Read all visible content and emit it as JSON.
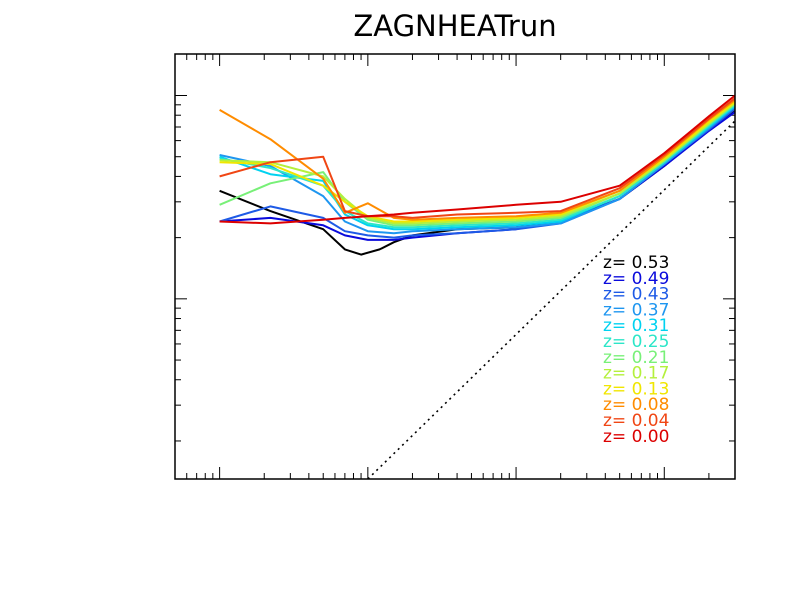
{
  "chart_data": {
    "type": "line",
    "title": "ZAGNHEATrun",
    "x_scale": "log",
    "y_scale": "log",
    "xlim": [
      0.5,
      3000
    ],
    "ylim": [
      0.0013,
      0.16
    ],
    "x_tick_labels_shown": false,
    "y_tick_labels_shown": false,
    "grid": false,
    "legend_placement": "right-center",
    "reference_line": {
      "style": "dotted",
      "color": "#000000",
      "points": [
        [
          10,
          0.0013
        ],
        [
          3000,
          0.075
        ]
      ]
    },
    "series": [
      {
        "name": "z=  0.53",
        "color": "#000000",
        "x": [
          1,
          2.2,
          5,
          7,
          9,
          12,
          15,
          20,
          40,
          100,
          200,
          500,
          1000,
          2000,
          3000
        ],
        "y": [
          0.034,
          0.027,
          0.022,
          0.0175,
          0.0165,
          0.0175,
          0.019,
          0.0205,
          0.022,
          0.0225,
          0.024,
          0.031,
          0.045,
          0.068,
          0.085
        ]
      },
      {
        "name": "z=  0.49",
        "color": "#0a0adc",
        "x": [
          1,
          2.2,
          5,
          7,
          10,
          15,
          20,
          40,
          100,
          200,
          500,
          1000,
          2000,
          3000
        ],
        "y": [
          0.024,
          0.025,
          0.023,
          0.0205,
          0.0195,
          0.0195,
          0.02,
          0.021,
          0.022,
          0.024,
          0.031,
          0.045,
          0.067,
          0.083
        ]
      },
      {
        "name": "z=  0.43",
        "color": "#1e5ae6",
        "x": [
          1,
          2.2,
          5,
          7,
          10,
          15,
          20,
          40,
          100,
          200,
          500,
          1000,
          2000,
          3000
        ],
        "y": [
          0.024,
          0.0285,
          0.025,
          0.0215,
          0.0205,
          0.02,
          0.0205,
          0.021,
          0.022,
          0.0235,
          0.031,
          0.046,
          0.068,
          0.086
        ]
      },
      {
        "name": "z=  0.37",
        "color": "#1e96f0",
        "x": [
          1,
          2.2,
          5,
          7,
          10,
          15,
          20,
          40,
          100,
          200,
          500,
          1000,
          2000,
          3000
        ],
        "y": [
          0.051,
          0.045,
          0.032,
          0.024,
          0.0215,
          0.021,
          0.0215,
          0.022,
          0.0225,
          0.0235,
          0.031,
          0.046,
          0.069,
          0.088
        ]
      },
      {
        "name": "z=  0.31",
        "color": "#00d2f0",
        "x": [
          1,
          2.2,
          5,
          7,
          10,
          15,
          20,
          40,
          100,
          200,
          500,
          1000,
          2000,
          3000
        ],
        "y": [
          0.05,
          0.041,
          0.038,
          0.026,
          0.023,
          0.022,
          0.022,
          0.0225,
          0.023,
          0.024,
          0.032,
          0.047,
          0.07,
          0.089
        ]
      },
      {
        "name": "z=  0.25",
        "color": "#2ce6c8",
        "x": [
          1,
          2.2,
          5,
          7,
          10,
          15,
          20,
          40,
          100,
          200,
          500,
          1000,
          2000,
          3000
        ],
        "y": [
          0.049,
          0.044,
          0.036,
          0.027,
          0.0235,
          0.0225,
          0.0225,
          0.023,
          0.0235,
          0.0245,
          0.032,
          0.047,
          0.071,
          0.09
        ]
      },
      {
        "name": "z=  0.21",
        "color": "#78f078",
        "x": [
          1,
          2.2,
          5,
          7,
          10,
          15,
          20,
          40,
          100,
          200,
          500,
          1000,
          2000,
          3000
        ],
        "y": [
          0.029,
          0.037,
          0.042,
          0.03,
          0.0245,
          0.023,
          0.023,
          0.0235,
          0.024,
          0.025,
          0.033,
          0.048,
          0.072,
          0.091
        ]
      },
      {
        "name": "z=  0.17",
        "color": "#b4f03c",
        "x": [
          1,
          2.2,
          5,
          7,
          10,
          15,
          20,
          40,
          100,
          200,
          500,
          1000,
          2000,
          3000
        ],
        "y": [
          0.048,
          0.047,
          0.04,
          0.031,
          0.025,
          0.0235,
          0.0235,
          0.024,
          0.0245,
          0.0255,
          0.033,
          0.048,
          0.073,
          0.092
        ]
      },
      {
        "name": "z=  0.13",
        "color": "#f0e600",
        "x": [
          1,
          2.2,
          5,
          7,
          10,
          15,
          20,
          40,
          100,
          200,
          500,
          1000,
          2000,
          3000
        ],
        "y": [
          0.047,
          0.046,
          0.036,
          0.03,
          0.0255,
          0.024,
          0.024,
          0.0245,
          0.025,
          0.026,
          0.034,
          0.049,
          0.074,
          0.093
        ]
      },
      {
        "name": "z=  0.08",
        "color": "#ff8c00",
        "x": [
          1,
          2.2,
          5,
          7,
          10,
          15,
          20,
          40,
          100,
          200,
          500,
          1000,
          2000,
          3000
        ],
        "y": [
          0.085,
          0.061,
          0.039,
          0.0265,
          0.0295,
          0.025,
          0.0245,
          0.025,
          0.0255,
          0.0265,
          0.034,
          0.05,
          0.076,
          0.095
        ]
      },
      {
        "name": "z=  0.04",
        "color": "#f04614",
        "x": [
          1,
          2.2,
          5,
          7,
          10,
          15,
          20,
          40,
          100,
          200,
          500,
          1000,
          2000,
          3000
        ],
        "y": [
          0.04,
          0.047,
          0.05,
          0.027,
          0.0255,
          0.0255,
          0.025,
          0.026,
          0.0265,
          0.027,
          0.035,
          0.051,
          0.077,
          0.097
        ]
      },
      {
        "name": "z=  0.00",
        "color": "#dc0000",
        "x": [
          1,
          2.2,
          5,
          7,
          10,
          15,
          20,
          40,
          100,
          200,
          500,
          1000,
          2000,
          3000
        ],
        "y": [
          0.024,
          0.0235,
          0.0245,
          0.025,
          0.0255,
          0.026,
          0.0265,
          0.0275,
          0.029,
          0.03,
          0.036,
          0.052,
          0.079,
          0.1
        ]
      }
    ]
  }
}
